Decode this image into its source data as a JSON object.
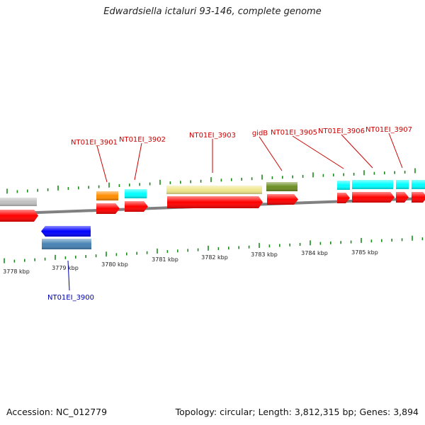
{
  "title": "Edwardsiella ictaluri 93-146, complete genome",
  "footer": {
    "accession": "Accession: NC_012779",
    "topology": "Topology: circular; Length: 3,812,315 bp; Genes: 3,894"
  },
  "colors": {
    "backbone": "#808080",
    "tick": "#1a8a1a",
    "label_forward": "#cc0000",
    "label_reverse": "#0000aa",
    "cds": "#ff0000",
    "reverse_cds": "#0000ff"
  },
  "scale_labels": [
    "3778 kbp",
    "3779 kbp",
    "3780 kbp",
    "3781 kbp",
    "3782 kbp",
    "3783 kbp",
    "3784 kbp",
    "3785 kbp"
  ],
  "gene_labels_forward": [
    "NT01EI_3901",
    "NT01EI_3902",
    "NT01EI_3903",
    "gidB",
    "NT01EI_3905",
    "NT01EI_3906",
    "NT01EI_3907"
  ],
  "gene_labels_reverse": [
    "NT01EI_3900"
  ],
  "feature_colors": {
    "gray": "#c0c0c0",
    "orange": "#ff8c00",
    "cyan": "#00ffff",
    "khaki": "#f0e68c",
    "olive": "#6b8e23",
    "steelblue": "#4682b4"
  }
}
